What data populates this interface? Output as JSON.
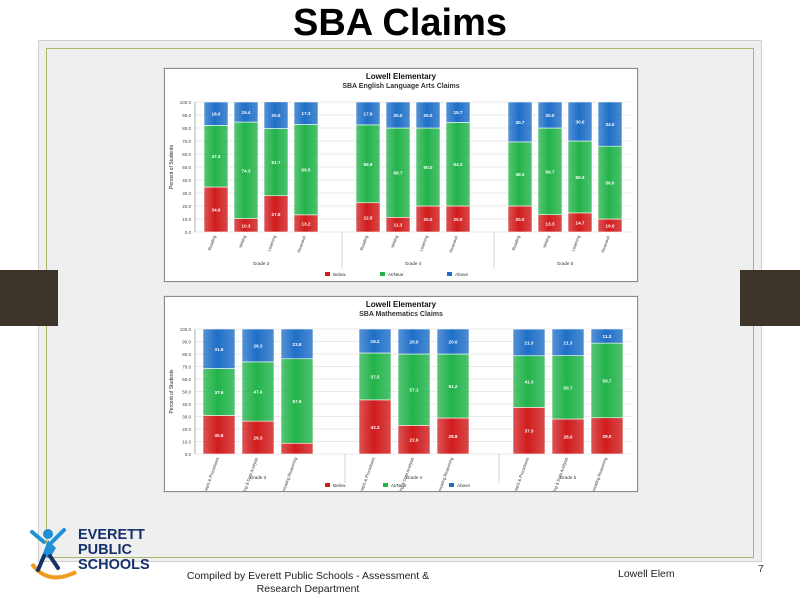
{
  "slide": {
    "title": "SBA Claims",
    "footer_compiled": "Compiled by Everett Public Schools - Assessment & Research Department",
    "footer_school": "Lowell Elem",
    "page_number": "7"
  },
  "logo": {
    "line1": "EVERETT",
    "line2": "PUBLIC",
    "line3": "SCHOOLS"
  },
  "colors": {
    "red": "#d01c1c",
    "green": "#22b34a",
    "blue": "#1f6fc7"
  },
  "chart_data": [
    {
      "type": "bar",
      "stacked": true,
      "title": "Lowell Elementary",
      "subtitle": "SBA English Language Arts Claims",
      "ylabel": "Percent of Students",
      "ylim": [
        0,
        100
      ],
      "yticks": [
        "0.0",
        "10.0",
        "20.0",
        "30.0",
        "40.0",
        "50.0",
        "60.0",
        "70.0",
        "80.0",
        "90.0",
        "100.0"
      ],
      "groups": [
        {
          "name": "Grade 3",
          "size": 4
        },
        {
          "name": "Grade 4",
          "size": 4
        },
        {
          "name": "Grade 5",
          "size": 4
        }
      ],
      "categories": [
        "Reading",
        "Writing",
        "Listening",
        "Research",
        "Reading",
        "Writing",
        "Listening",
        "Research",
        "Reading",
        "Writing",
        "Listening",
        "Research"
      ],
      "series": [
        {
          "name": "Below",
          "values": [
            34.6,
            10.3,
            27.9,
            13.2,
            22.5,
            11.3,
            20.0,
            20.0,
            20.0,
            13.3,
            14.7,
            10.0
          ]
        },
        {
          "name": "At/Near",
          "values": [
            47.4,
            74.3,
            51.7,
            69.5,
            59.9,
            68.7,
            60.0,
            64.3,
            49.3,
            66.7,
            55.3,
            56.0
          ]
        },
        {
          "name": "Above",
          "values": [
            18.0,
            15.4,
            20.5,
            17.3,
            17.6,
            20.0,
            20.0,
            15.7,
            30.7,
            20.0,
            30.0,
            34.0
          ]
        }
      ],
      "labels": {
        "Below": [
          "34.6",
          "10.3",
          "27.9",
          "13.2",
          "22.5",
          "11.3",
          "20.0",
          "20.0",
          "20.0",
          "13.3",
          "14.7",
          "10.0"
        ],
        "At/Near": [
          "47.4",
          "74.3",
          "51.7",
          "69.5",
          "59.9",
          "68.7",
          "60.0",
          "64.3",
          "49.3",
          "66.7",
          "55.3",
          "56.0"
        ],
        "Above": [
          "18.0",
          "15.4",
          "20.5",
          "17.3",
          "17.6",
          "20.0",
          "20.0",
          "15.7",
          "30.7",
          "20.0",
          "30.0",
          "34.0"
        ]
      },
      "legend": [
        "Below",
        "At/Near",
        "Above"
      ],
      "grid": true
    },
    {
      "type": "bar",
      "stacked": true,
      "title": "Lowell Elementary",
      "subtitle": "SBA Mathematics Claims",
      "ylabel": "Percent of Students",
      "ylim": [
        0,
        100
      ],
      "yticks": [
        "0.0",
        "10.0",
        "20.0",
        "30.0",
        "40.0",
        "50.0",
        "60.0",
        "70.0",
        "80.0",
        "90.0",
        "100.0"
      ],
      "groups": [
        {
          "name": "Grade 3",
          "size": 3
        },
        {
          "name": "Grade 4",
          "size": 3
        },
        {
          "name": "Grade 5",
          "size": 3
        }
      ],
      "categories": [
        "Concepts & Procedures",
        "Problem Solving & Modeling & Data Analysis",
        "Communicating Reasoning",
        "Concepts & Procedures",
        "Problem Solving & Modeling & Data Analysis",
        "Communicating Reasoning",
        "Concepts & Procedures",
        "Problem Solving & Modeling & Data Analysis",
        "Communicating Reasoning"
      ],
      "series": [
        {
          "name": "Below",
          "values": [
            30.8,
            26.3,
            8.6,
            43.3,
            22.9,
            28.8,
            37.3,
            28.0,
            29.0
          ]
        },
        {
          "name": "At/Near",
          "values": [
            37.6,
            47.4,
            67.6,
            37.5,
            57.1,
            51.2,
            41.3,
            50.7,
            59.7
          ]
        },
        {
          "name": "Above",
          "values": [
            31.6,
            26.3,
            23.8,
            19.2,
            20.0,
            20.0,
            21.3,
            21.3,
            11.3
          ]
        }
      ],
      "labels": {
        "Below": [
          "30.8",
          "26.3",
          "",
          "43.3",
          "22.9",
          "28.8",
          "37.3",
          "28.0",
          "29.0"
        ],
        "At/Near": [
          "37.6",
          "47.4",
          "67.6",
          "37.5",
          "57.1",
          "51.2",
          "41.3",
          "50.7",
          "59.7"
        ],
        "Above": [
          "31.6",
          "26.3",
          "23.8",
          "19.2",
          "20.0",
          "20.0",
          "21.3",
          "21.3",
          "11.3"
        ]
      },
      "legend": [
        "Below",
        "At/Near",
        "Above"
      ],
      "grid": true
    }
  ]
}
